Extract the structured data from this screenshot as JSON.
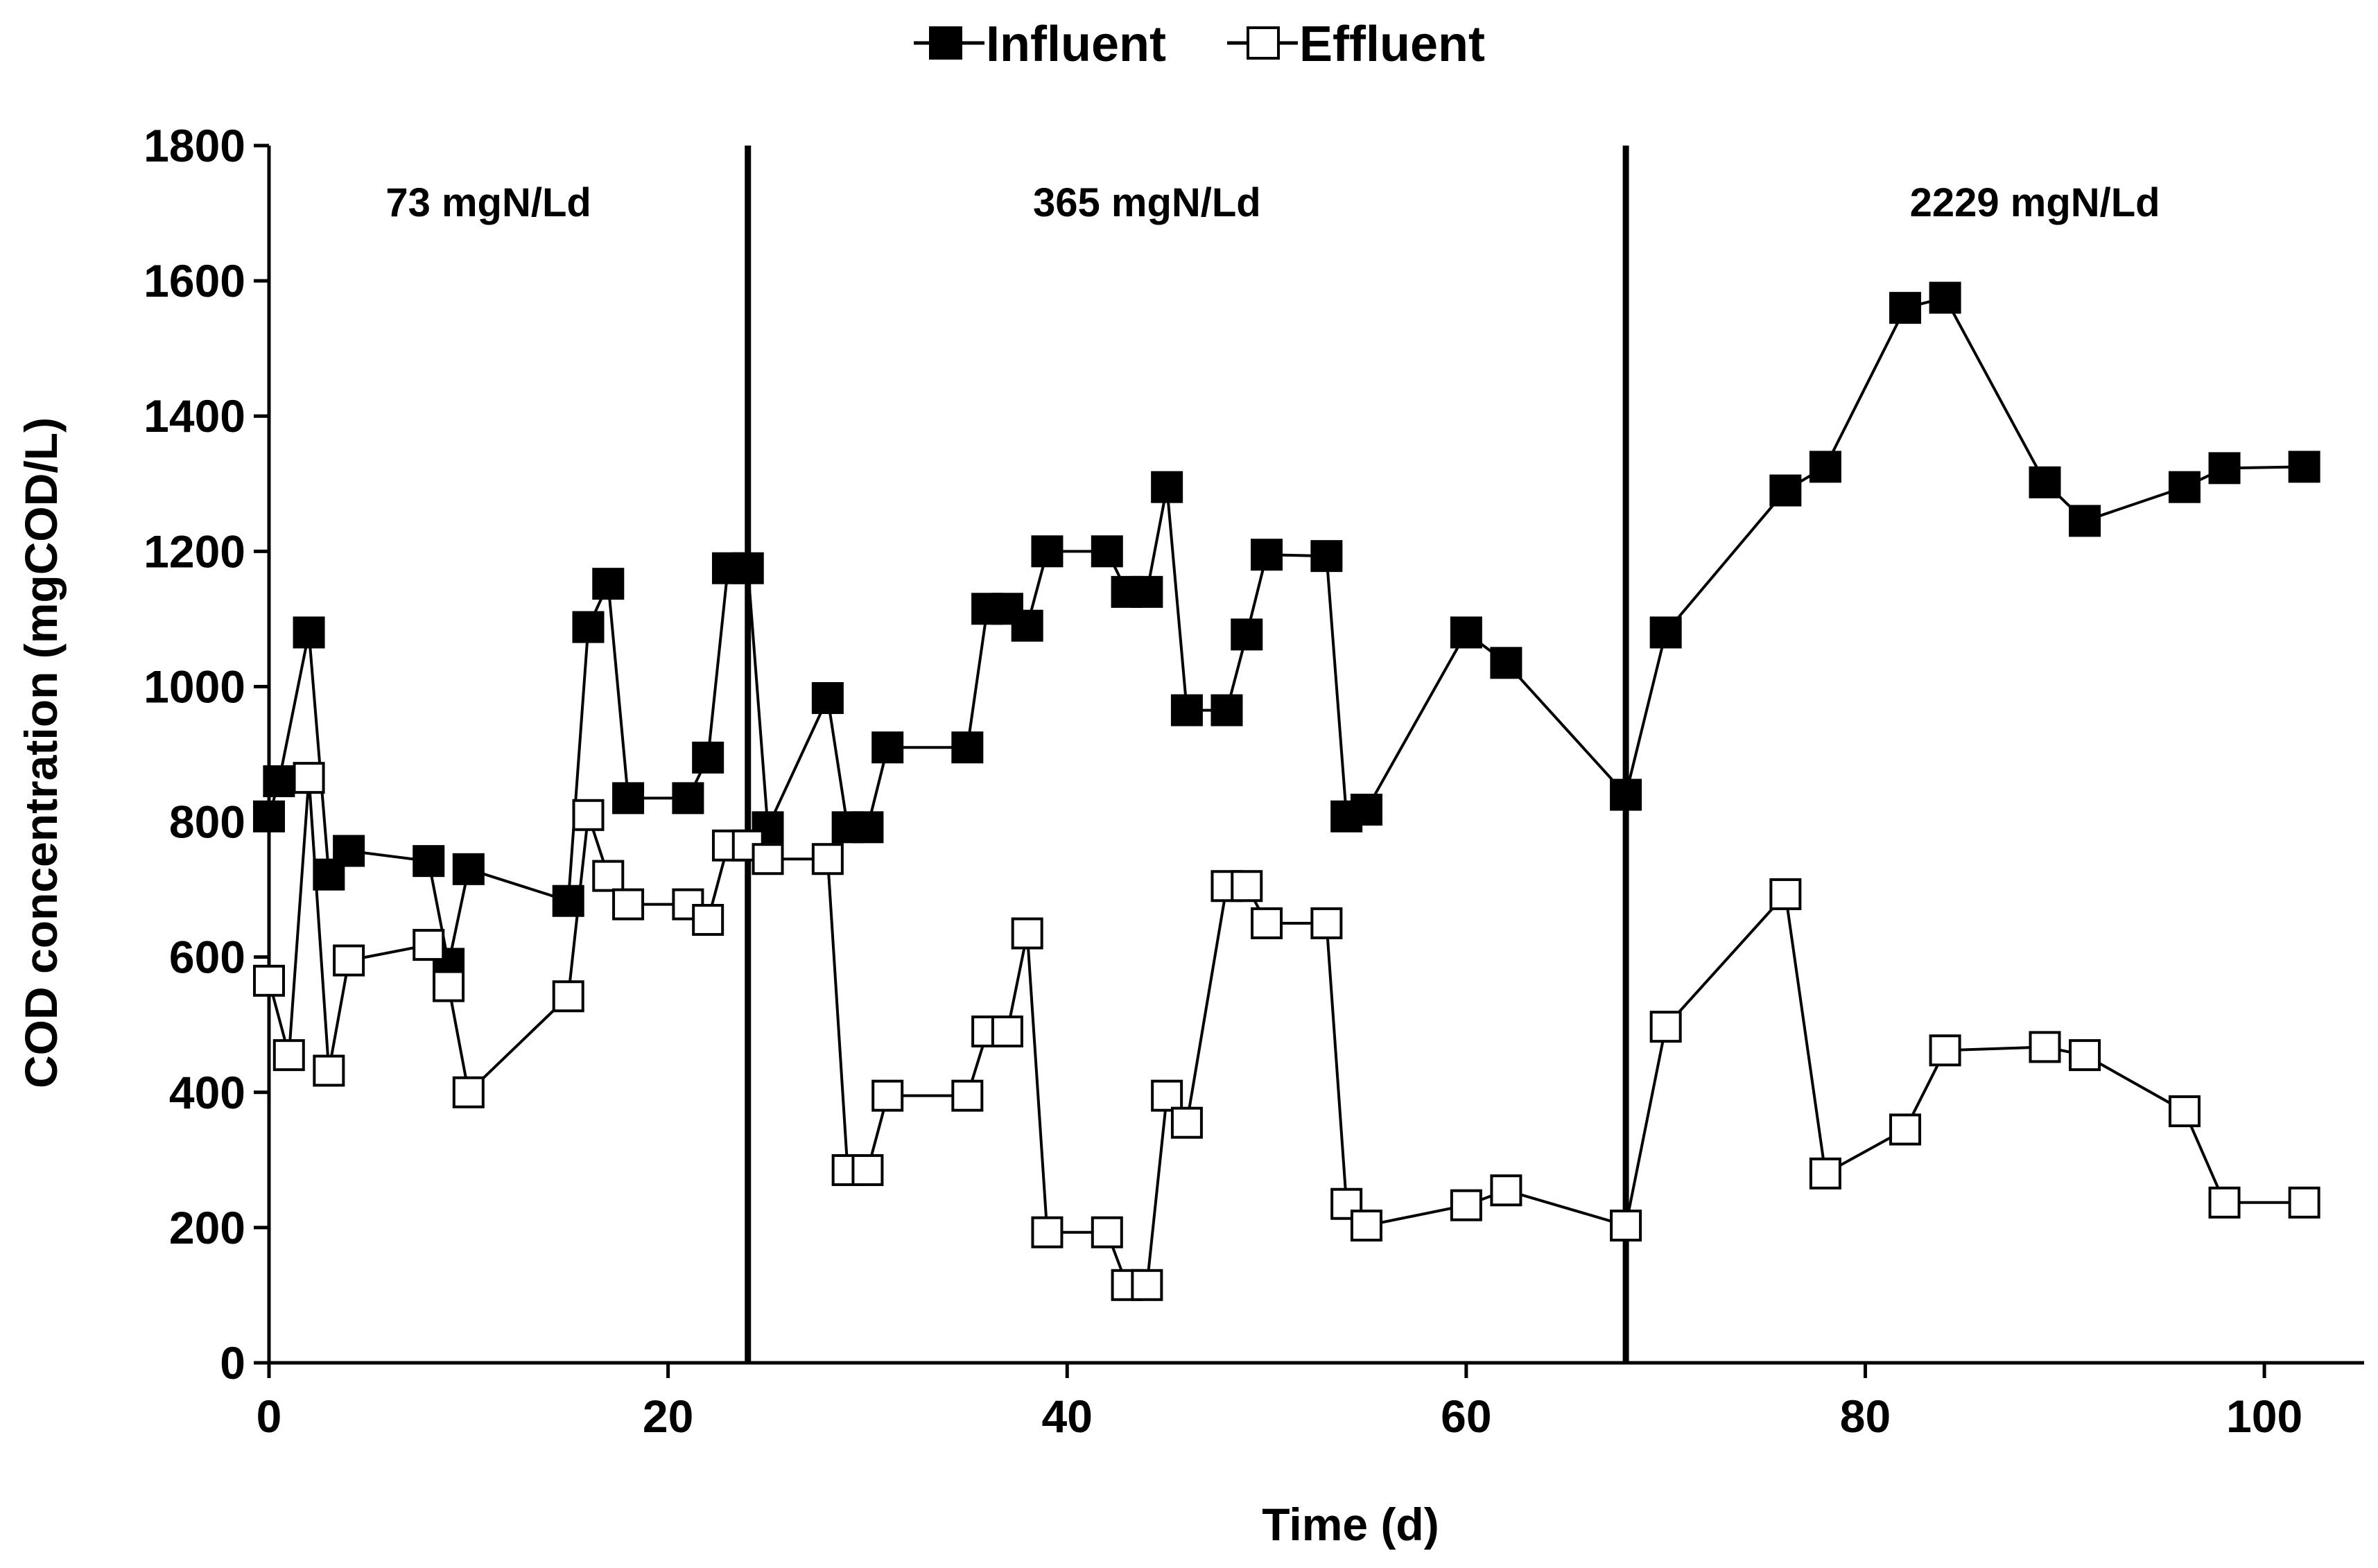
{
  "chart_data": {
    "type": "line",
    "xlabel": "Time (d)",
    "ylabel": "COD concentration  (mgCOD/L)",
    "xlim": [
      0,
      105
    ],
    "ylim": [
      0,
      1800
    ],
    "xticks": [
      0,
      20,
      40,
      60,
      80,
      100
    ],
    "yticks": [
      0,
      200,
      400,
      600,
      800,
      1000,
      1200,
      1400,
      1600,
      1800
    ],
    "grid": false,
    "legend_position": "top-center",
    "phase_dividers": [
      24,
      68
    ],
    "phases": [
      {
        "label": "73 mgN/Ld",
        "x_center": 11
      },
      {
        "label": "365 mgN/Ld",
        "x_center": 44
      },
      {
        "label": "2229 mgN/Ld",
        "x_center": 88.5
      }
    ],
    "series": [
      {
        "name": "Influent",
        "marker": "filled-square",
        "points": [
          [
            0,
            808
          ],
          [
            0.5,
            860
          ],
          [
            2,
            1080
          ],
          [
            3,
            722
          ],
          [
            4,
            757
          ],
          [
            8,
            742
          ],
          [
            9,
            590
          ],
          [
            10,
            730
          ],
          [
            15,
            683
          ],
          [
            16,
            1088
          ],
          [
            17,
            1152
          ],
          [
            18,
            835
          ],
          [
            21,
            835
          ],
          [
            22,
            895
          ],
          [
            23,
            1175
          ],
          [
            24,
            1175
          ],
          [
            25,
            792
          ],
          [
            28,
            983
          ],
          [
            29,
            792
          ],
          [
            30,
            792
          ],
          [
            31,
            910
          ],
          [
            35,
            910
          ],
          [
            36,
            1115
          ],
          [
            37,
            1115
          ],
          [
            38,
            1090
          ],
          [
            39,
            1200
          ],
          [
            42,
            1200
          ],
          [
            43,
            1140
          ],
          [
            44,
            1140
          ],
          [
            45,
            1295
          ],
          [
            46,
            965
          ],
          [
            48,
            965
          ],
          [
            49,
            1077
          ],
          [
            50,
            1195
          ],
          [
            53,
            1193
          ],
          [
            54,
            808
          ],
          [
            55,
            818
          ],
          [
            60,
            1080
          ],
          [
            62,
            1035
          ],
          [
            68,
            840
          ],
          [
            70,
            1080
          ],
          [
            76,
            1290
          ],
          [
            78,
            1325
          ],
          [
            82,
            1560
          ],
          [
            84,
            1575
          ],
          [
            89,
            1302
          ],
          [
            91,
            1245
          ],
          [
            96,
            1295
          ],
          [
            98,
            1323
          ],
          [
            102,
            1325
          ]
        ]
      },
      {
        "name": "Effluent",
        "marker": "open-square",
        "points": [
          [
            0,
            565
          ],
          [
            1,
            455
          ],
          [
            2,
            865
          ],
          [
            3,
            432
          ],
          [
            4,
            595
          ],
          [
            8,
            618
          ],
          [
            9,
            557
          ],
          [
            10,
            400
          ],
          [
            15,
            542
          ],
          [
            16,
            810
          ],
          [
            17,
            720
          ],
          [
            18,
            678
          ],
          [
            21,
            678
          ],
          [
            22,
            655
          ],
          [
            23,
            765
          ],
          [
            24,
            765
          ],
          [
            25,
            745
          ],
          [
            28,
            745
          ],
          [
            29,
            285
          ],
          [
            30,
            285
          ],
          [
            31,
            395
          ],
          [
            35,
            395
          ],
          [
            36,
            490
          ],
          [
            37,
            490
          ],
          [
            38,
            635
          ],
          [
            39,
            193
          ],
          [
            42,
            193
          ],
          [
            43,
            115
          ],
          [
            44,
            115
          ],
          [
            45,
            395
          ],
          [
            46,
            355
          ],
          [
            48,
            705
          ],
          [
            49,
            705
          ],
          [
            50,
            650
          ],
          [
            53,
            650
          ],
          [
            54,
            235
          ],
          [
            55,
            203
          ],
          [
            60,
            233
          ],
          [
            62,
            255
          ],
          [
            68,
            203
          ],
          [
            70,
            497
          ],
          [
            76,
            693
          ],
          [
            78,
            280
          ],
          [
            82,
            345
          ],
          [
            84,
            462
          ],
          [
            89,
            467
          ],
          [
            91,
            455
          ],
          [
            96,
            372
          ],
          [
            98,
            237
          ],
          [
            102,
            237
          ]
        ]
      }
    ]
  }
}
